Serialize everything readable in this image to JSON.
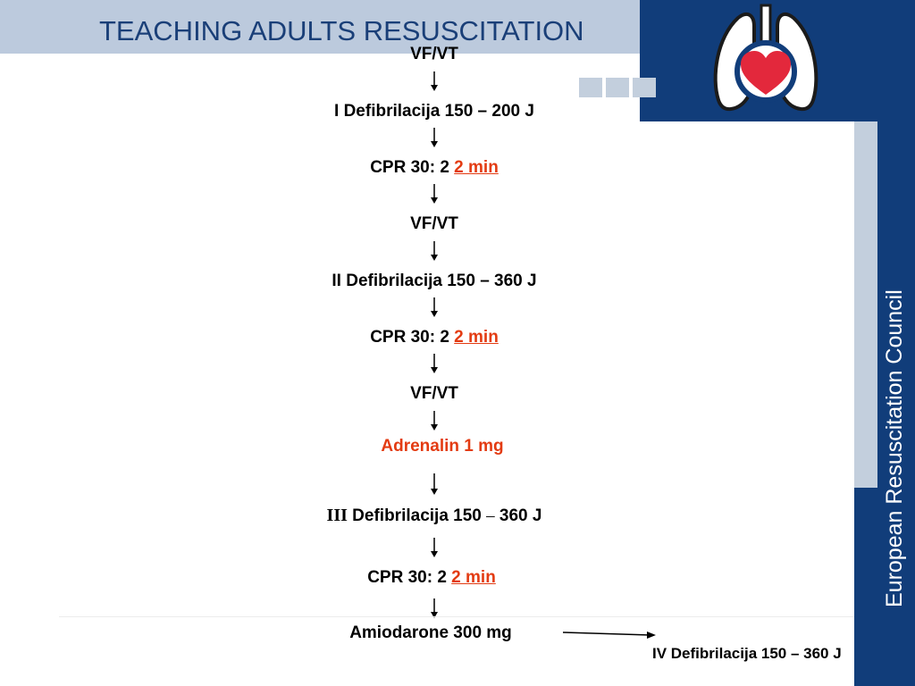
{
  "slide": {
    "title": "TEACHING ADULTS RESUSCITATION",
    "organization": "European Resuscitation Council"
  },
  "logo": {
    "icon": "lungs-heart-logo"
  },
  "colors": {
    "navy": "#113d7a",
    "light_blue": "#bccadd",
    "accent_red": "#e33b12"
  },
  "flow": {
    "s1": "VF/VT",
    "s2": "I Defibrilacija 150 – 200 J",
    "s3_prefix": "CPR 30: 2 ",
    "s3_highlight": "2 min",
    "s4": "VF/VT",
    "s5": "II Defibrilacija 150 – 360 J",
    "s6_prefix": "CPR 30: 2 ",
    "s6_highlight": "2 min",
    "s7": "VF/VT",
    "s8": "Adrenalin 1 mg",
    "s9_roman": "III",
    "s9_a": " Defibrilacija 150 ",
    "s9_dash": "–",
    "s9_b": " 360 J",
    "s10_prefix": "CPR 30: 2 ",
    "s10_highlight": "2 min",
    "s11": "Amiodarone 300 mg",
    "s12": "IV Defibrilacija 150 – 360 J"
  }
}
